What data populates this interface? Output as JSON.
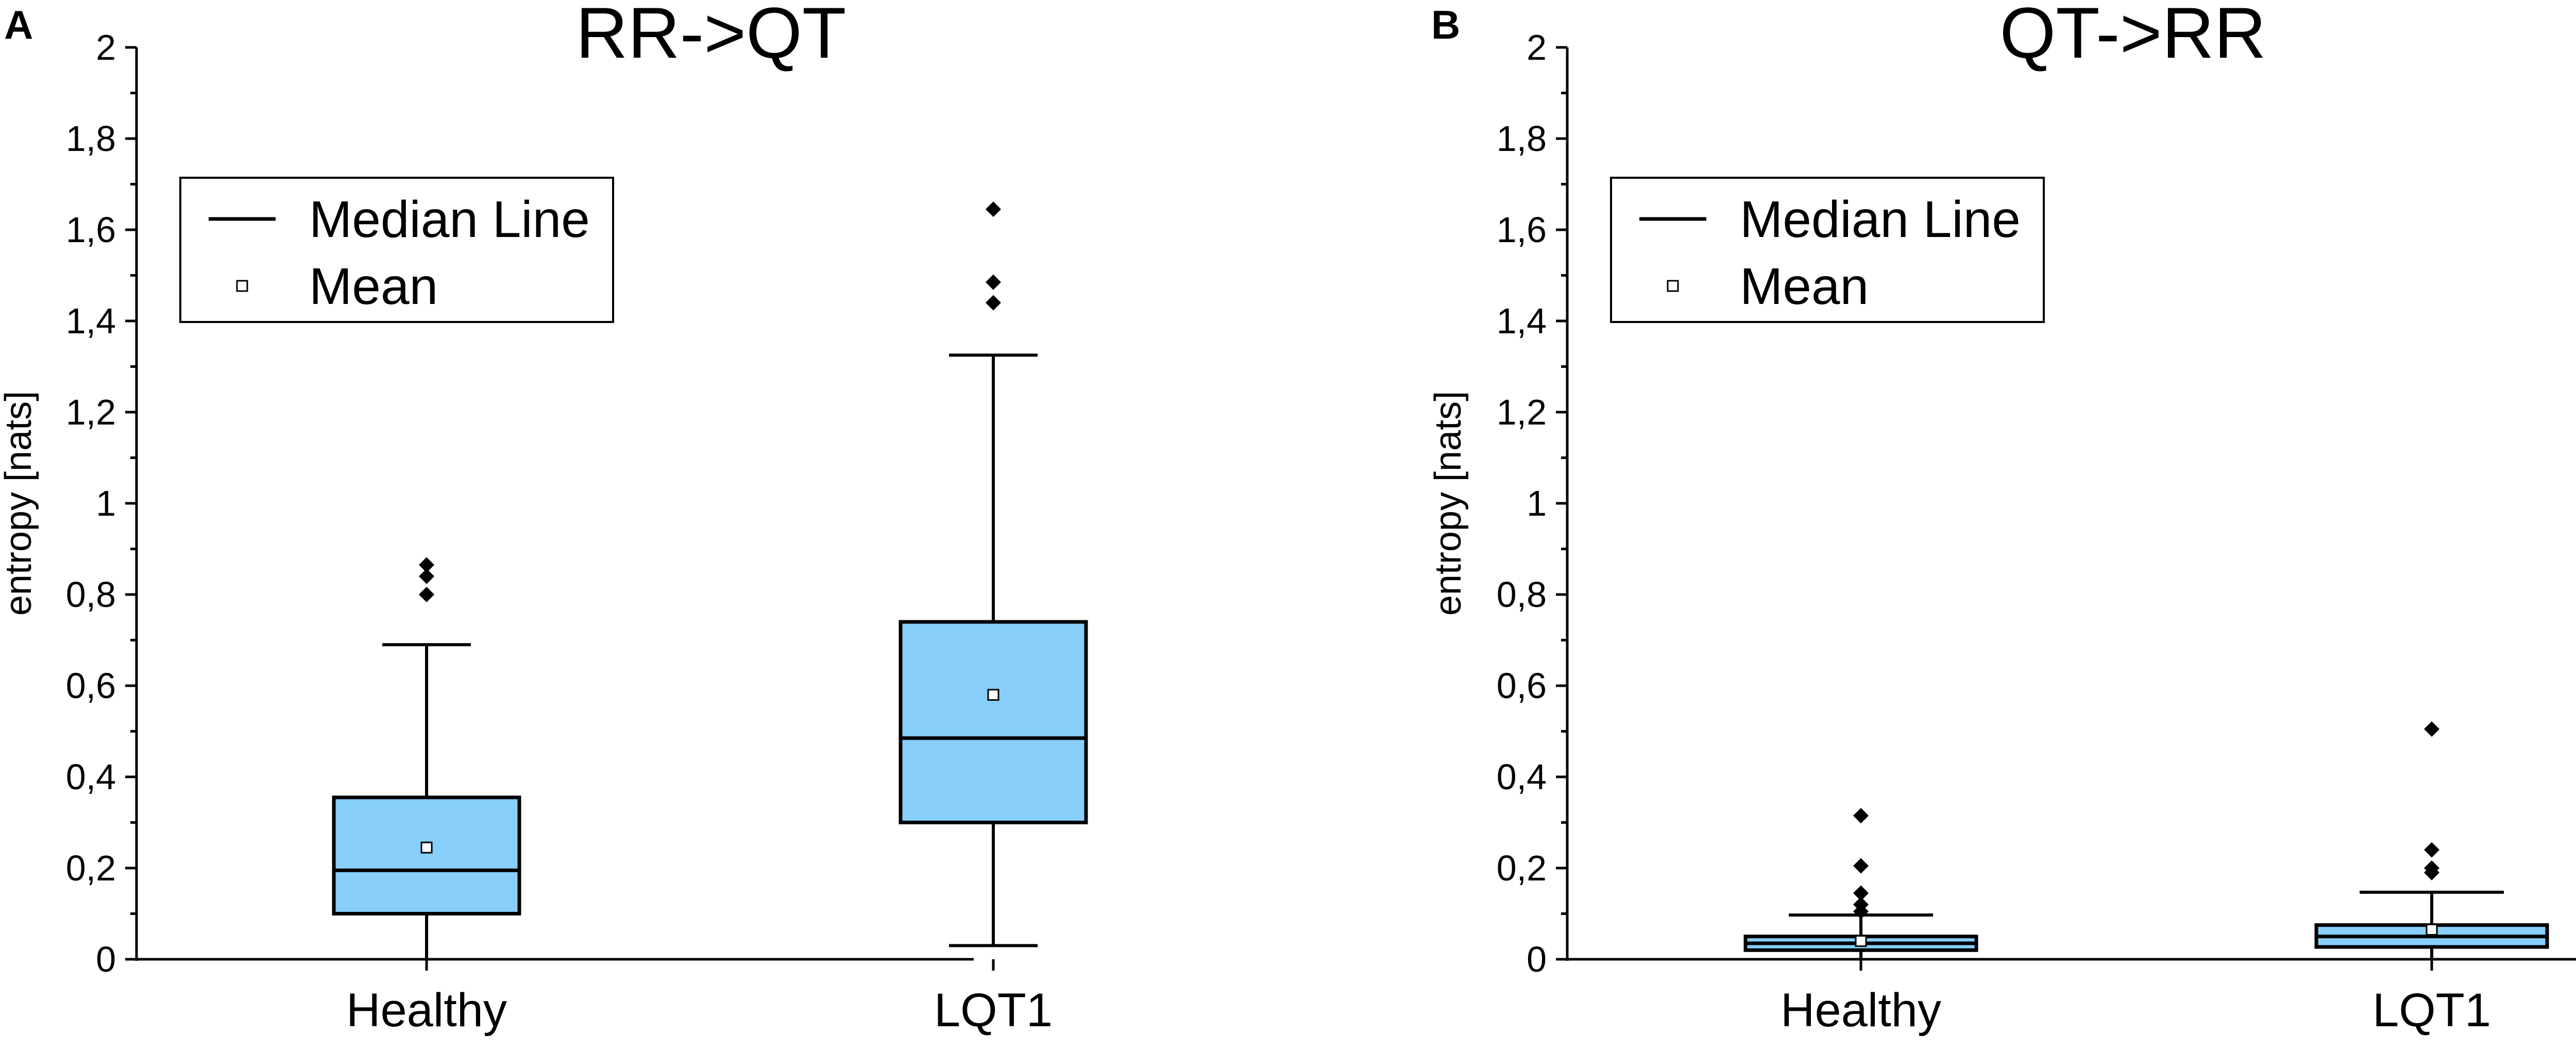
{
  "colors": {
    "box_fill": "#87CEFA",
    "stroke": "#000000",
    "background": "#ffffff"
  },
  "chart_data": [
    {
      "panel": "A",
      "type": "box",
      "title": "RR->QT",
      "ylabel": "entropy [nats]",
      "xlabel": "",
      "ylim": [
        0,
        2
      ],
      "y_ticks": [
        0,
        0.2,
        0.4,
        0.6,
        0.8,
        1,
        1.2,
        1.4,
        1.6,
        1.8,
        2
      ],
      "y_tick_labels": [
        "0",
        "0,2",
        "0,4",
        "0,6",
        "0,8",
        "1",
        "1,2",
        "1,4",
        "1,6",
        "1,8",
        "2"
      ],
      "grid": false,
      "legend": {
        "position": "top-left",
        "entries": [
          "Median Line",
          "Mean"
        ]
      },
      "categories": [
        "Healthy",
        "LQT1"
      ],
      "boxes": [
        {
          "category": "Healthy",
          "whisker_low": 0.0,
          "q1": 0.1,
          "median": 0.195,
          "q3": 0.355,
          "whisker_high": 0.69,
          "mean": 0.245,
          "outliers": [
            0.8,
            0.84,
            0.865
          ]
        },
        {
          "category": "LQT1",
          "whisker_low": 0.03,
          "q1": 0.3,
          "median": 0.485,
          "q3": 0.74,
          "whisker_high": 1.325,
          "mean": 0.58,
          "outliers": [
            1.44,
            1.485,
            1.645
          ]
        }
      ]
    },
    {
      "panel": "B",
      "type": "box",
      "title": "QT->RR",
      "ylabel": "entropy [nats]",
      "xlabel": "",
      "ylim": [
        0,
        2
      ],
      "y_ticks": [
        0,
        0.2,
        0.4,
        0.6,
        0.8,
        1,
        1.2,
        1.4,
        1.6,
        1.8,
        2
      ],
      "y_tick_labels": [
        "0",
        "0,2",
        "0,4",
        "0,6",
        "0,8",
        "1",
        "1,2",
        "1,4",
        "1,6",
        "1,8",
        "2"
      ],
      "grid": false,
      "legend": {
        "position": "top-left",
        "entries": [
          "Median Line",
          "Mean"
        ]
      },
      "categories": [
        "Healthy",
        "LQT1"
      ],
      "boxes": [
        {
          "category": "Healthy",
          "whisker_low": 0.0,
          "q1": 0.02,
          "median": 0.035,
          "q3": 0.05,
          "whisker_high": 0.097,
          "mean": 0.04,
          "outliers": [
            0.105,
            0.12,
            0.145,
            0.205,
            0.315
          ]
        },
        {
          "category": "LQT1",
          "whisker_low": 0.0,
          "q1": 0.027,
          "median": 0.05,
          "q3": 0.075,
          "whisker_high": 0.147,
          "mean": 0.065,
          "outliers": [
            0.19,
            0.2,
            0.24,
            0.505
          ]
        }
      ]
    }
  ]
}
